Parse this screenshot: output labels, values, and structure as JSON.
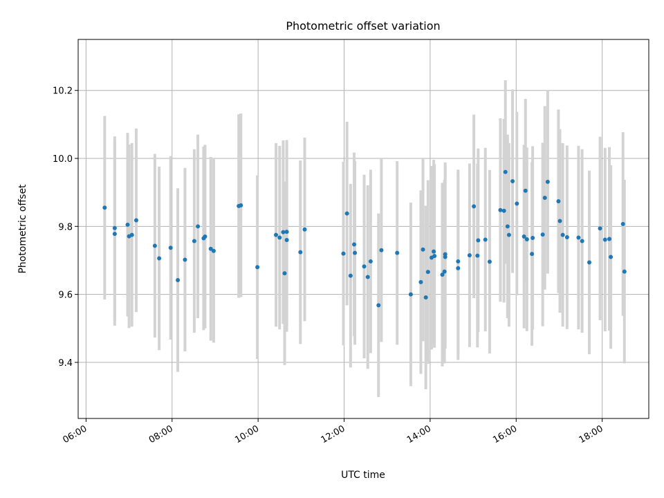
{
  "chart_data": {
    "type": "scatter",
    "title": "Photometric offset variation",
    "xlabel": "UTC time",
    "ylabel": "Photometric offset",
    "x_tick_labels": [
      "06:00",
      "08:00",
      "10:00",
      "12:00",
      "14:00",
      "16:00",
      "18:00"
    ],
    "y_tick_labels": [
      "9.4",
      "9.6",
      "9.8",
      "10.0",
      "10.2"
    ],
    "xlim": [
      "05:49",
      "19:05"
    ],
    "ylim": [
      9.235,
      10.35
    ],
    "grid": true,
    "colors": {
      "point": "#1f77b4",
      "error_bar": "#d3d3d3",
      "grid": "#b0b0b0"
    },
    "error_half_width": 0.27,
    "points": [
      {
        "x": "06:26",
        "y": 9.855
      },
      {
        "x": "06:40",
        "y": 9.795
      },
      {
        "x": "06:40",
        "y": 9.778
      },
      {
        "x": "06:58",
        "y": 9.805
      },
      {
        "x": "07:00",
        "y": 9.771
      },
      {
        "x": "07:04",
        "y": 9.775
      },
      {
        "x": "07:10",
        "y": 9.818
      },
      {
        "x": "07:36",
        "y": 9.743
      },
      {
        "x": "07:42",
        "y": 9.706
      },
      {
        "x": "07:58",
        "y": 9.737
      },
      {
        "x": "08:08",
        "y": 9.642
      },
      {
        "x": "08:18",
        "y": 9.702
      },
      {
        "x": "08:31",
        "y": 9.757
      },
      {
        "x": "08:36",
        "y": 9.8
      },
      {
        "x": "08:44",
        "y": 9.765
      },
      {
        "x": "08:46",
        "y": 9.77
      },
      {
        "x": "08:54",
        "y": 9.734
      },
      {
        "x": "08:58",
        "y": 9.728
      },
      {
        "x": "09:33",
        "y": 9.86
      },
      {
        "x": "09:36",
        "y": 9.862
      },
      {
        "x": "09:59",
        "y": 9.68
      },
      {
        "x": "10:25",
        "y": 9.775
      },
      {
        "x": "10:30",
        "y": 9.767
      },
      {
        "x": "10:35",
        "y": 9.783
      },
      {
        "x": "10:37",
        "y": 9.662
      },
      {
        "x": "10:40",
        "y": 9.784
      },
      {
        "x": "10:40",
        "y": 9.76
      },
      {
        "x": "10:59",
        "y": 9.724
      },
      {
        "x": "11:05",
        "y": 9.791
      },
      {
        "x": "11:59",
        "y": 9.72
      },
      {
        "x": "12:04",
        "y": 9.838
      },
      {
        "x": "12:09",
        "y": 9.655
      },
      {
        "x": "12:14",
        "y": 9.747
      },
      {
        "x": "12:15",
        "y": 9.722
      },
      {
        "x": "12:28",
        "y": 9.682
      },
      {
        "x": "12:33",
        "y": 9.651
      },
      {
        "x": "12:37",
        "y": 9.697
      },
      {
        "x": "12:48",
        "y": 9.568
      },
      {
        "x": "12:52",
        "y": 9.73
      },
      {
        "x": "13:14",
        "y": 9.722
      },
      {
        "x": "13:33",
        "y": 9.6
      },
      {
        "x": "13:47",
        "y": 9.636
      },
      {
        "x": "13:50",
        "y": 9.732
      },
      {
        "x": "13:54",
        "y": 9.591
      },
      {
        "x": "13:57",
        "y": 9.666
      },
      {
        "x": "14:02",
        "y": 9.708
      },
      {
        "x": "14:05",
        "y": 9.726
      },
      {
        "x": "14:06",
        "y": 9.713
      },
      {
        "x": "14:17",
        "y": 9.658
      },
      {
        "x": "14:20",
        "y": 9.667
      },
      {
        "x": "14:21",
        "y": 9.71
      },
      {
        "x": "14:21",
        "y": 9.718
      },
      {
        "x": "14:39",
        "y": 9.677
      },
      {
        "x": "14:39",
        "y": 9.697
      },
      {
        "x": "14:55",
        "y": 9.715
      },
      {
        "x": "15:01",
        "y": 9.859
      },
      {
        "x": "15:06",
        "y": 9.714
      },
      {
        "x": "15:07",
        "y": 9.759
      },
      {
        "x": "15:17",
        "y": 9.761
      },
      {
        "x": "15:23",
        "y": 9.696
      },
      {
        "x": "15:38",
        "y": 9.848
      },
      {
        "x": "15:43",
        "y": 9.846
      },
      {
        "x": "15:45",
        "y": 9.96
      },
      {
        "x": "15:48",
        "y": 9.8
      },
      {
        "x": "15:50",
        "y": 9.775
      },
      {
        "x": "15:55",
        "y": 9.933
      },
      {
        "x": "16:01",
        "y": 9.867
      },
      {
        "x": "16:11",
        "y": 9.77
      },
      {
        "x": "16:13",
        "y": 9.905
      },
      {
        "x": "16:15",
        "y": 9.762
      },
      {
        "x": "16:22",
        "y": 9.719
      },
      {
        "x": "16:23",
        "y": 9.766
      },
      {
        "x": "16:37",
        "y": 9.776
      },
      {
        "x": "16:40",
        "y": 9.884
      },
      {
        "x": "16:44",
        "y": 9.931
      },
      {
        "x": "16:59",
        "y": 9.874
      },
      {
        "x": "17:01",
        "y": 9.816
      },
      {
        "x": "17:05",
        "y": 9.775
      },
      {
        "x": "17:11",
        "y": 9.768
      },
      {
        "x": "17:27",
        "y": 9.767
      },
      {
        "x": "17:32",
        "y": 9.757
      },
      {
        "x": "17:42",
        "y": 9.694
      },
      {
        "x": "17:57",
        "y": 9.794
      },
      {
        "x": "18:04",
        "y": 9.761
      },
      {
        "x": "18:10",
        "y": 9.763
      },
      {
        "x": "18:12",
        "y": 9.71
      },
      {
        "x": "18:29",
        "y": 9.807
      },
      {
        "x": "18:31",
        "y": 9.667
      }
    ]
  }
}
